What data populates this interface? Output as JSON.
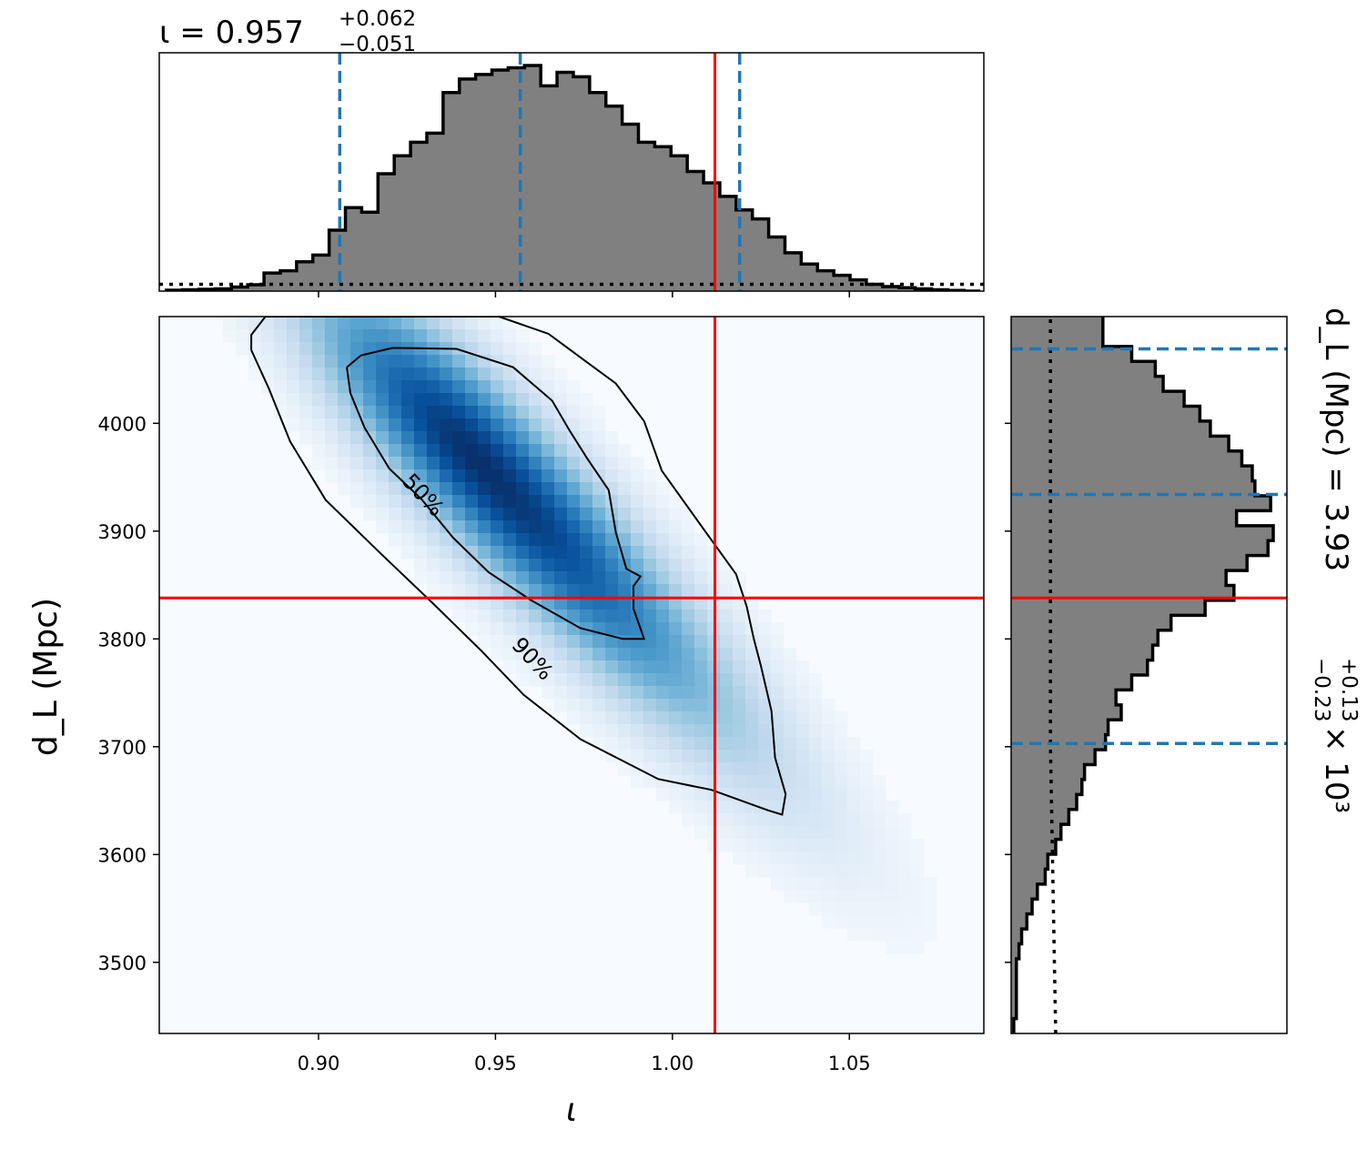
{
  "chart_data": {
    "type": "corner",
    "colors": {
      "histogram_fill": "#808080",
      "histogram_edge": "#000000",
      "quantile_line": "#1f77b4",
      "injection_line": "#ff0000",
      "density_colormap": "Blues",
      "contour": "#000000"
    },
    "iota_marginal": {
      "title": "ι = 0.957",
      "title_plus": "+0.062",
      "title_minus": "−0.051",
      "median": 0.957,
      "quantiles": [
        0.906,
        0.957,
        1.019
      ],
      "injection": 1.012,
      "bin_edges": [
        0.857,
        1.087
      ],
      "counts": [
        0.004,
        0.006,
        0.008,
        0.01,
        0.018,
        0.028,
        0.08,
        0.09,
        0.13,
        0.16,
        0.27,
        0.37,
        0.35,
        0.52,
        0.6,
        0.66,
        0.7,
        0.88,
        0.94,
        0.96,
        0.98,
        0.99,
        1.0,
        0.91,
        0.97,
        0.95,
        0.88,
        0.82,
        0.74,
        0.66,
        0.64,
        0.6,
        0.53,
        0.48,
        0.42,
        0.36,
        0.32,
        0.24,
        0.17,
        0.12,
        0.09,
        0.07,
        0.05,
        0.03,
        0.02,
        0.015,
        0.01,
        0.006,
        0.003,
        0.0
      ],
      "prior_level": 0.03,
      "xticks": [
        "0.90",
        "0.95",
        "1.00",
        "1.05"
      ],
      "xlim": [
        0.855,
        1.088
      ]
    },
    "dl_marginal": {
      "title": "d_L (Mpc) = 3.93",
      "title_plus": "+0.13",
      "title_minus": "−0.23",
      "title_suffix": "× 10³",
      "quantiles": [
        3703,
        3934,
        4069
      ],
      "injection": 3838,
      "bin_edges": [
        3434,
        4099
      ],
      "counts": [
        0.01,
        0.02,
        0.02,
        0.02,
        0.02,
        0.03,
        0.04,
        0.06,
        0.08,
        0.1,
        0.13,
        0.14,
        0.17,
        0.19,
        0.22,
        0.25,
        0.27,
        0.28,
        0.32,
        0.36,
        0.37,
        0.42,
        0.4,
        0.46,
        0.52,
        0.54,
        0.56,
        0.61,
        0.74,
        0.85,
        0.82,
        0.9,
        0.98,
        1.0,
        0.86,
        0.99,
        0.93,
        0.92,
        0.88,
        0.83,
        0.76,
        0.72,
        0.66,
        0.58,
        0.55,
        0.46,
        0.35,
        0.35
      ],
      "prior_x": [
        0.17,
        0.16,
        0.15,
        0.15,
        0.15,
        0.15
      ],
      "yticks": [
        3500,
        3600,
        3700,
        3800,
        3900,
        4000
      ],
      "ylim": [
        3434,
        4099
      ]
    },
    "joint": {
      "xlabel": "ι",
      "ylabel": "d_L (Mpc)",
      "xticks": [
        "0.90",
        "0.95",
        "1.00",
        "1.05"
      ],
      "yticks": [
        "3500",
        "3600",
        "3700",
        "3800",
        "3900",
        "4000"
      ],
      "xlim": [
        0.855,
        1.088
      ],
      "ylim": [
        3434,
        4099
      ],
      "injection": [
        1.012,
        3838
      ],
      "density_peak": [
        0.945,
        3965
      ],
      "contours": [
        {
          "label": "50%",
          "points": [
            [
              0.908,
              4052
            ],
            [
              0.912,
              4063
            ],
            [
              0.921,
              4070
            ],
            [
              0.939,
              4069
            ],
            [
              0.955,
              4052
            ],
            [
              0.966,
              4021
            ],
            [
              0.971,
              3993
            ],
            [
              0.976,
              3967
            ],
            [
              0.982,
              3938
            ],
            [
              0.984,
              3899
            ],
            [
              0.987,
              3865
            ],
            [
              0.991,
              3858
            ],
            [
              0.989,
              3849
            ],
            [
              0.989,
              3828
            ],
            [
              0.992,
              3800
            ],
            [
              0.986,
              3800
            ],
            [
              0.974,
              3810
            ],
            [
              0.96,
              3836
            ],
            [
              0.948,
              3862
            ],
            [
              0.938,
              3894
            ],
            [
              0.929,
              3930
            ],
            [
              0.92,
              3958
            ],
            [
              0.913,
              3996
            ],
            [
              0.909,
              4028
            ],
            [
              0.908,
              4052
            ]
          ]
        },
        {
          "label": "90%",
          "points": [
            [
              0.881,
              4068
            ],
            [
              0.881,
              4082
            ],
            [
              0.885,
              4099
            ],
            [
              0.951,
              4099
            ],
            [
              0.965,
              4083
            ],
            [
              0.972,
              4066
            ],
            [
              0.984,
              4037
            ],
            [
              0.992,
              4002
            ],
            [
              0.997,
              3956
            ],
            [
              1.009,
              3901
            ],
            [
              1.018,
              3860
            ],
            [
              1.021,
              3830
            ],
            [
              1.023,
              3800
            ],
            [
              1.025,
              3775
            ],
            [
              1.028,
              3733
            ],
            [
              1.029,
              3690
            ],
            [
              1.032,
              3656
            ],
            [
              1.031,
              3637
            ],
            [
              1.027,
              3641
            ],
            [
              1.011,
              3660
            ],
            [
              0.996,
              3670
            ],
            [
              0.974,
              3707
            ],
            [
              0.958,
              3748
            ],
            [
              0.946,
              3789
            ],
            [
              0.932,
              3834
            ],
            [
              0.917,
              3881
            ],
            [
              0.902,
              3929
            ],
            [
              0.892,
              3983
            ],
            [
              0.886,
              4032
            ],
            [
              0.881,
              4068
            ]
          ]
        }
      ]
    }
  }
}
